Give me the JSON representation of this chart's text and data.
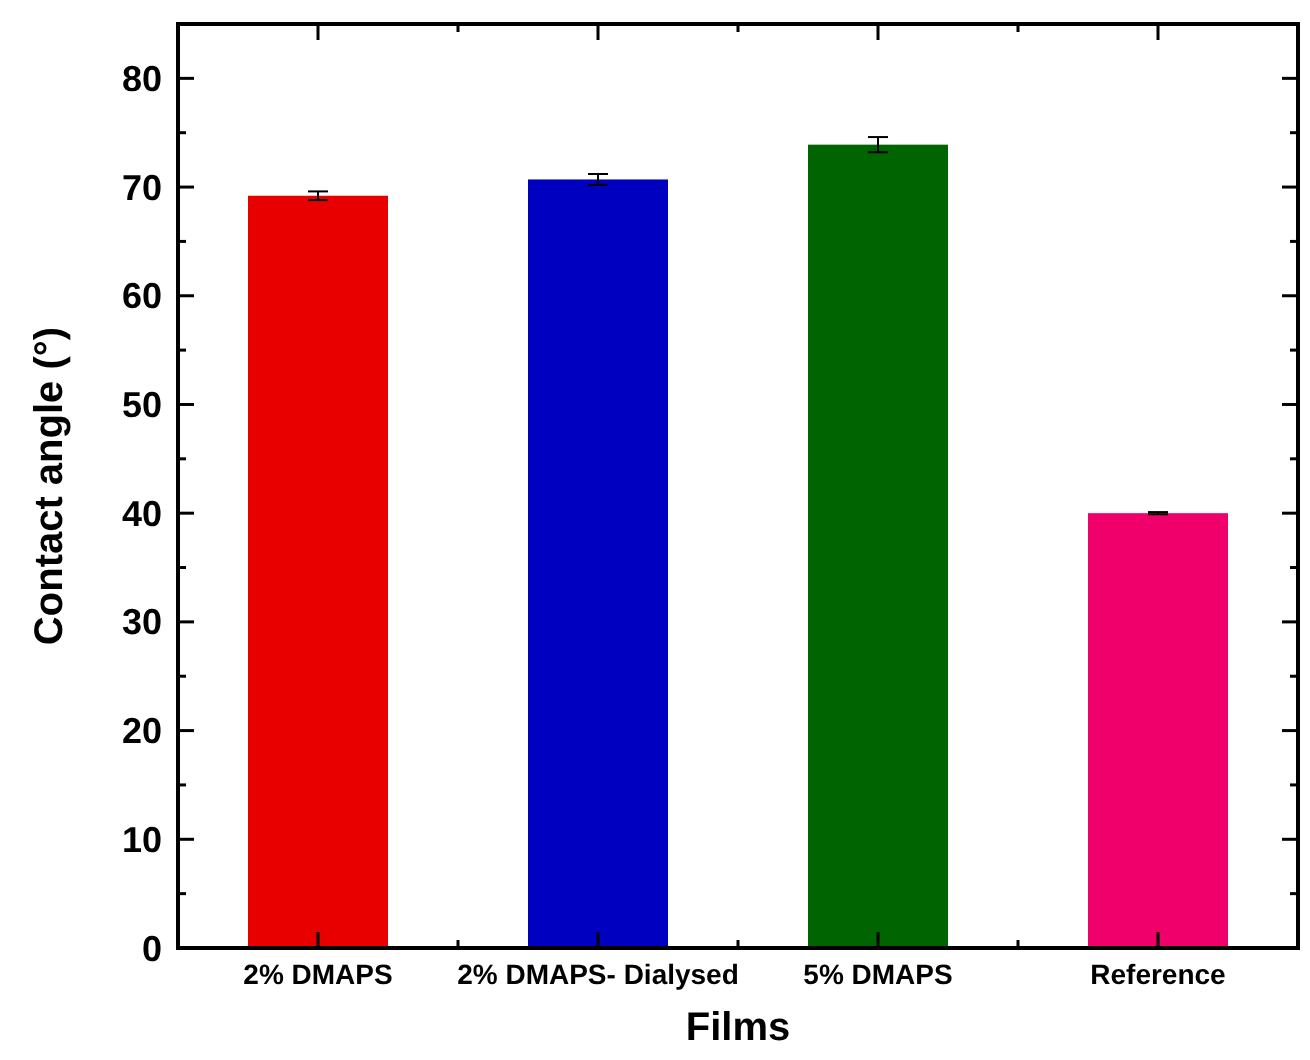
{
  "chart_data": {
    "type": "bar",
    "xlabel": "Films",
    "ylabel": "Contact angle (°)",
    "categories": [
      "2% DMAPS",
      "2% DMAPS- Dialysed",
      "5% DMAPS",
      "Reference"
    ],
    "values": [
      69.2,
      70.7,
      73.9,
      40.0
    ],
    "errors": [
      0.4,
      0.5,
      0.7,
      0.1
    ],
    "colors": [
      "#e80000",
      "#0000c0",
      "#006400",
      "#f0006a"
    ],
    "ylim": [
      0,
      85
    ],
    "yticks": [
      0,
      10,
      20,
      30,
      40,
      50,
      60,
      70,
      80
    ],
    "grid": false
  }
}
